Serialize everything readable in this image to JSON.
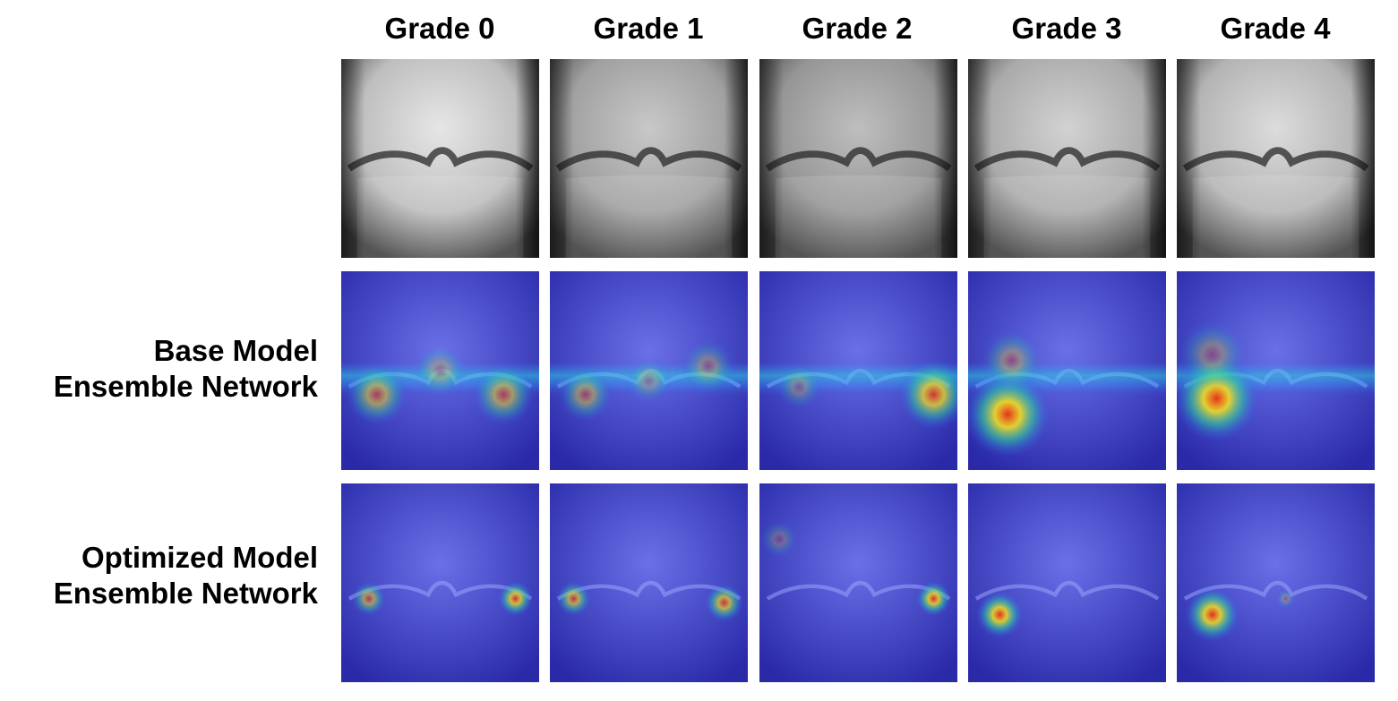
{
  "columns": [
    {
      "label": "Grade 0"
    },
    {
      "label": "Grade 1"
    },
    {
      "label": "Grade 2"
    },
    {
      "label": "Grade 3"
    },
    {
      "label": "Grade 4"
    }
  ],
  "rows": [
    {
      "kind": "xray",
      "line1": "",
      "line2": ""
    },
    {
      "kind": "heatmap-base",
      "line1": "Base Model",
      "line2": "Ensemble Network"
    },
    {
      "kind": "heatmap-optimized",
      "line1": "Optimized Model",
      "line2": "Ensemble Network"
    }
  ],
  "colors": {
    "heatmap_base": "#3a3fd0",
    "hot": "#e8301a",
    "warm": "#f4e020",
    "cool": "#30d0a0"
  }
}
